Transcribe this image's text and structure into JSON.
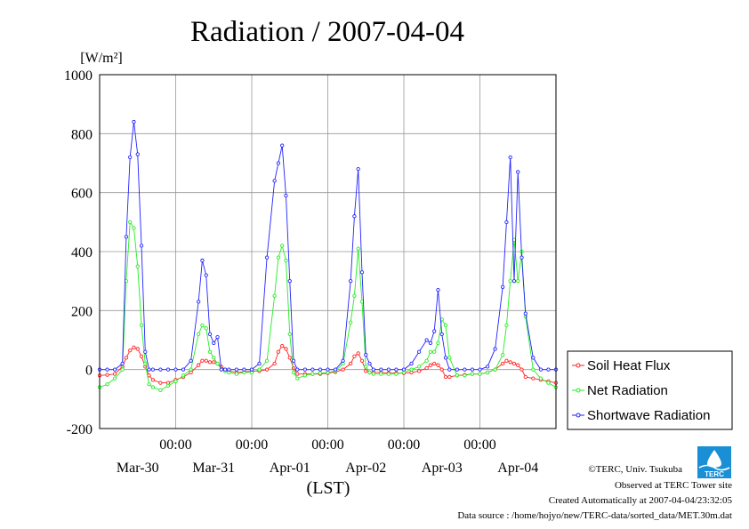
{
  "chart_data": {
    "type": "line",
    "title": "Radiation / 2007-04-04",
    "ylabel": "[W/m²]",
    "xlabel": "(LST)",
    "ylim": [
      -200,
      1000
    ],
    "yticks": [
      -200,
      0,
      200,
      400,
      600,
      800,
      1000
    ],
    "ytick_labels": [
      "-200",
      "0",
      "200",
      "400",
      "600",
      "800",
      "1000"
    ],
    "xlim_days": [
      0,
      6
    ],
    "xtick_labels_time": [
      "00:00",
      "00:00",
      "00:00",
      "00:00",
      "00:00"
    ],
    "date_labels": [
      "Mar-30",
      "Mar-31",
      "Apr-01",
      "Apr-02",
      "Apr-03",
      "Apr-04"
    ],
    "grid": true,
    "legend_position": "right",
    "series": [
      {
        "name": "Soil Heat Flux",
        "color": "#ff2020",
        "x": [
          0.0,
          0.1,
          0.2,
          0.3,
          0.35,
          0.4,
          0.45,
          0.5,
          0.55,
          0.6,
          0.65,
          0.7,
          0.8,
          0.9,
          1.0,
          1.1,
          1.2,
          1.3,
          1.35,
          1.4,
          1.45,
          1.5,
          1.55,
          1.6,
          1.65,
          1.7,
          1.8,
          1.9,
          2.0,
          2.1,
          2.2,
          2.3,
          2.35,
          2.4,
          2.45,
          2.5,
          2.55,
          2.6,
          2.7,
          2.8,
          2.9,
          3.0,
          3.1,
          3.2,
          3.3,
          3.35,
          3.4,
          3.45,
          3.5,
          3.55,
          3.6,
          3.7,
          3.8,
          3.9,
          4.0,
          4.1,
          4.2,
          4.3,
          4.35,
          4.4,
          4.45,
          4.5,
          4.55,
          4.6,
          4.7,
          4.8,
          4.9,
          5.0,
          5.1,
          5.2,
          5.3,
          5.35,
          5.4,
          5.45,
          5.5,
          5.55,
          5.6,
          5.7,
          5.8,
          5.9,
          6.0
        ],
        "y": [
          -20,
          -18,
          -15,
          10,
          40,
          65,
          75,
          70,
          45,
          10,
          -20,
          -35,
          -45,
          -45,
          -35,
          -25,
          -10,
          15,
          30,
          30,
          25,
          25,
          20,
          10,
          0,
          -5,
          -10,
          -8,
          -5,
          -5,
          0,
          20,
          60,
          80,
          70,
          40,
          5,
          -15,
          -15,
          -15,
          -15,
          -12,
          -8,
          0,
          20,
          45,
          55,
          30,
          -5,
          -10,
          -10,
          -10,
          -12,
          -12,
          -12,
          -10,
          -5,
          5,
          15,
          20,
          15,
          0,
          -25,
          -25,
          -20,
          -18,
          -15,
          -15,
          -10,
          0,
          20,
          30,
          25,
          20,
          15,
          0,
          -25,
          -30,
          -35,
          -40,
          -45
        ]
      },
      {
        "name": "Net Radiation",
        "color": "#22ee22",
        "x": [
          0.0,
          0.1,
          0.2,
          0.3,
          0.35,
          0.4,
          0.45,
          0.5,
          0.55,
          0.6,
          0.65,
          0.7,
          0.8,
          0.9,
          1.0,
          1.1,
          1.2,
          1.3,
          1.35,
          1.4,
          1.45,
          1.5,
          1.55,
          1.6,
          1.65,
          1.7,
          1.8,
          1.9,
          2.0,
          2.1,
          2.2,
          2.3,
          2.35,
          2.4,
          2.45,
          2.5,
          2.55,
          2.6,
          2.7,
          2.8,
          2.9,
          3.0,
          3.1,
          3.2,
          3.3,
          3.35,
          3.4,
          3.45,
          3.5,
          3.55,
          3.6,
          3.7,
          3.8,
          3.9,
          4.0,
          4.1,
          4.2,
          4.3,
          4.35,
          4.4,
          4.45,
          4.5,
          4.55,
          4.6,
          4.7,
          4.8,
          4.9,
          5.0,
          5.1,
          5.2,
          5.3,
          5.35,
          5.4,
          5.45,
          5.5,
          5.55,
          5.6,
          5.7,
          5.8,
          5.9,
          6.0
        ],
        "y": [
          -60,
          -50,
          -30,
          0,
          300,
          500,
          480,
          350,
          150,
          20,
          -50,
          -60,
          -70,
          -55,
          -40,
          -20,
          0,
          120,
          150,
          140,
          60,
          40,
          20,
          0,
          -5,
          -10,
          -15,
          -10,
          -10,
          0,
          30,
          250,
          380,
          420,
          370,
          120,
          -10,
          -30,
          -20,
          -15,
          -12,
          -10,
          -5,
          20,
          160,
          250,
          410,
          230,
          10,
          -10,
          -15,
          -15,
          -15,
          -15,
          -10,
          0,
          10,
          30,
          60,
          60,
          90,
          170,
          150,
          40,
          -20,
          -20,
          -15,
          -15,
          -10,
          0,
          50,
          150,
          300,
          440,
          300,
          400,
          180,
          0,
          -30,
          -45,
          -60
        ]
      },
      {
        "name": "Shortwave Radiation",
        "color": "#2222ff",
        "x": [
          0.0,
          0.1,
          0.2,
          0.3,
          0.35,
          0.4,
          0.45,
          0.5,
          0.55,
          0.6,
          0.65,
          0.7,
          0.8,
          0.9,
          1.0,
          1.1,
          1.2,
          1.3,
          1.35,
          1.4,
          1.45,
          1.5,
          1.55,
          1.6,
          1.65,
          1.7,
          1.8,
          1.9,
          2.0,
          2.1,
          2.2,
          2.3,
          2.35,
          2.4,
          2.45,
          2.5,
          2.55,
          2.6,
          2.7,
          2.8,
          2.9,
          3.0,
          3.1,
          3.2,
          3.3,
          3.35,
          3.4,
          3.45,
          3.5,
          3.55,
          3.6,
          3.7,
          3.8,
          3.9,
          4.0,
          4.1,
          4.2,
          4.3,
          4.35,
          4.4,
          4.45,
          4.5,
          4.55,
          4.6,
          4.7,
          4.8,
          4.9,
          5.0,
          5.1,
          5.2,
          5.3,
          5.35,
          5.4,
          5.45,
          5.5,
          5.55,
          5.6,
          5.7,
          5.8,
          5.9,
          6.0
        ],
        "y": [
          0,
          0,
          0,
          20,
          450,
          720,
          840,
          730,
          420,
          60,
          0,
          0,
          0,
          0,
          0,
          0,
          30,
          230,
          370,
          320,
          120,
          90,
          110,
          0,
          0,
          0,
          0,
          0,
          0,
          20,
          380,
          640,
          700,
          760,
          590,
          300,
          30,
          0,
          0,
          0,
          0,
          0,
          0,
          30,
          300,
          520,
          680,
          330,
          50,
          20,
          0,
          0,
          0,
          0,
          0,
          20,
          60,
          100,
          90,
          130,
          270,
          120,
          40,
          0,
          0,
          0,
          0,
          0,
          10,
          70,
          280,
          500,
          720,
          300,
          670,
          380,
          190,
          40,
          0,
          0,
          0
        ]
      }
    ]
  },
  "credits": {
    "copyright": "©TERC, Univ. Tsukuba",
    "observed": "Observed at TERC Tower site",
    "created": "Created Automatically at 2007-04-04/23:32:05",
    "source": "Data source : /home/hojyo/new/TERC-data/sorted_data/MET.30m.dat"
  },
  "logo": {
    "text": "TERC",
    "color": "#1a8fd6"
  }
}
